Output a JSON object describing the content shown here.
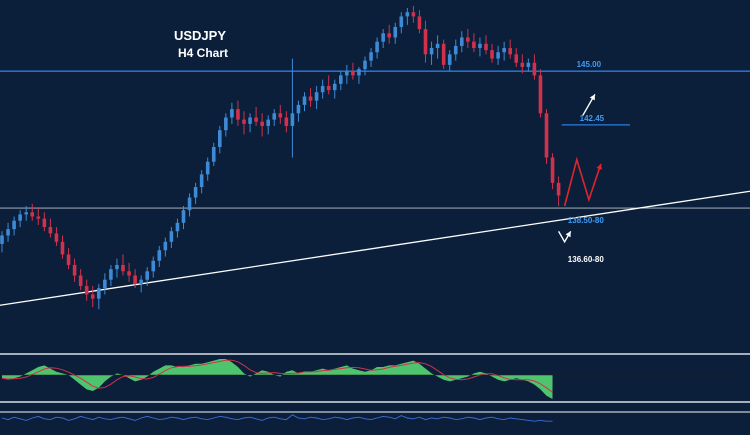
{
  "chart_data": {
    "type": "candlestick",
    "symbol": "USDJPY",
    "timeframe": "H4 Chart",
    "colors": {
      "background": "#0b1f3a",
      "bull": "#3d8ad6",
      "bear": "#d2314b",
      "resistance": "#2a7de1",
      "support": "#b9c3cf",
      "trendline": "#ffffff",
      "label_blue": "#3d9cf5",
      "projection_red": "#e0242e",
      "projection_white": "#ffffff",
      "histogram": "#4fc46e",
      "osc_line": "#3b6fd6",
      "panel_border": "#a7afba"
    },
    "price_axis": {
      "min": 132.0,
      "max": 148.0
    },
    "levels": [
      {
        "price": 145.0,
        "label": "145.00",
        "kind": "resistance"
      },
      {
        "price": 142.45,
        "label": "142.45",
        "kind": "target"
      },
      {
        "price": 138.5,
        "label": "138.50-80",
        "kind": "support"
      },
      {
        "price": 136.6,
        "label": "136.60-80",
        "kind": "support"
      }
    ],
    "trendline": {
      "from_bar": 0,
      "from_price": 133.9,
      "to_bar": 103,
      "to_price": 138.4
    },
    "candles": [
      [
        136.8,
        137.4,
        136.4,
        137.2
      ],
      [
        137.2,
        137.8,
        136.9,
        137.5
      ],
      [
        137.5,
        138.1,
        137.2,
        137.9
      ],
      [
        137.9,
        138.4,
        137.6,
        138.2
      ],
      [
        138.2,
        138.6,
        137.9,
        138.3
      ],
      [
        138.3,
        138.7,
        137.9,
        138.1
      ],
      [
        138.1,
        138.5,
        137.7,
        138.0
      ],
      [
        138.0,
        138.3,
        137.4,
        137.6
      ],
      [
        137.6,
        138.0,
        137.1,
        137.3
      ],
      [
        137.3,
        137.6,
        136.7,
        136.9
      ],
      [
        136.9,
        137.2,
        136.1,
        136.3
      ],
      [
        136.3,
        136.6,
        135.6,
        135.8
      ],
      [
        135.8,
        136.1,
        135.0,
        135.3
      ],
      [
        135.3,
        135.6,
        134.6,
        134.8
      ],
      [
        134.8,
        135.1,
        134.1,
        134.4
      ],
      [
        134.4,
        134.8,
        133.8,
        134.2
      ],
      [
        134.2,
        134.9,
        133.7,
        134.7
      ],
      [
        134.7,
        135.4,
        134.4,
        135.1
      ],
      [
        135.1,
        135.8,
        134.8,
        135.6
      ],
      [
        135.6,
        136.1,
        135.2,
        135.8
      ],
      [
        135.8,
        136.3,
        135.3,
        135.5
      ],
      [
        135.5,
        135.9,
        135.0,
        135.3
      ],
      [
        135.3,
        135.6,
        134.7,
        134.9
      ],
      [
        134.9,
        135.3,
        134.5,
        135.1
      ],
      [
        135.1,
        135.7,
        134.8,
        135.5
      ],
      [
        135.5,
        136.2,
        135.2,
        136.0
      ],
      [
        136.0,
        136.7,
        135.7,
        136.5
      ],
      [
        136.5,
        137.1,
        136.2,
        136.9
      ],
      [
        136.9,
        137.6,
        136.6,
        137.4
      ],
      [
        137.4,
        138.0,
        137.1,
        137.8
      ],
      [
        137.8,
        138.6,
        137.5,
        138.4
      ],
      [
        138.4,
        139.2,
        138.1,
        139.0
      ],
      [
        139.0,
        139.7,
        138.7,
        139.5
      ],
      [
        139.5,
        140.3,
        139.2,
        140.1
      ],
      [
        140.1,
        140.9,
        139.8,
        140.7
      ],
      [
        140.7,
        141.6,
        140.5,
        141.4
      ],
      [
        141.4,
        142.4,
        141.1,
        142.2
      ],
      [
        142.2,
        143.0,
        141.9,
        142.8
      ],
      [
        142.8,
        143.5,
        142.5,
        143.2
      ],
      [
        143.2,
        143.6,
        142.4,
        142.7
      ],
      [
        142.7,
        143.1,
        142.0,
        142.5
      ],
      [
        142.5,
        143.0,
        142.1,
        142.8
      ],
      [
        142.8,
        143.3,
        142.4,
        142.6
      ],
      [
        142.6,
        143.0,
        141.9,
        142.4
      ],
      [
        142.4,
        142.9,
        142.0,
        142.7
      ],
      [
        142.7,
        143.2,
        142.4,
        143.0
      ],
      [
        143.0,
        143.4,
        142.5,
        142.8
      ],
      [
        142.8,
        143.1,
        142.1,
        142.4
      ],
      [
        142.4,
        145.6,
        140.9,
        143.0
      ],
      [
        143.0,
        143.6,
        142.6,
        143.4
      ],
      [
        143.4,
        144.0,
        143.1,
        143.8
      ],
      [
        143.8,
        144.2,
        143.3,
        143.6
      ],
      [
        143.6,
        144.3,
        143.2,
        144.0
      ],
      [
        144.0,
        144.6,
        143.7,
        144.3
      ],
      [
        144.3,
        144.8,
        143.9,
        144.1
      ],
      [
        144.1,
        144.6,
        143.7,
        144.4
      ],
      [
        144.4,
        145.0,
        144.1,
        144.8
      ],
      [
        144.8,
        145.3,
        144.4,
        145.0
      ],
      [
        145.0,
        145.4,
        144.6,
        144.8
      ],
      [
        144.8,
        145.2,
        144.4,
        145.1
      ],
      [
        145.1,
        145.7,
        144.8,
        145.5
      ],
      [
        145.5,
        146.1,
        145.2,
        145.9
      ],
      [
        145.9,
        146.6,
        145.6,
        146.4
      ],
      [
        146.4,
        147.0,
        146.1,
        146.8
      ],
      [
        146.8,
        147.2,
        146.3,
        146.6
      ],
      [
        146.6,
        147.3,
        146.3,
        147.1
      ],
      [
        147.1,
        147.8,
        146.8,
        147.6
      ],
      [
        147.6,
        148.0,
        147.2,
        147.8
      ],
      [
        147.8,
        148.1,
        147.3,
        147.6
      ],
      [
        147.6,
        147.9,
        146.8,
        147.0
      ],
      [
        147.0,
        147.4,
        145.4,
        145.8
      ],
      [
        145.8,
        146.4,
        145.3,
        146.1
      ],
      [
        146.1,
        146.7,
        145.6,
        146.3
      ],
      [
        146.3,
        146.5,
        145.1,
        145.3
      ],
      [
        145.3,
        146.0,
        145.0,
        145.8
      ],
      [
        145.8,
        146.5,
        145.5,
        146.2
      ],
      [
        146.2,
        146.9,
        145.9,
        146.6
      ],
      [
        146.6,
        147.0,
        146.1,
        146.4
      ],
      [
        146.4,
        146.8,
        145.9,
        146.1
      ],
      [
        146.1,
        146.6,
        145.7,
        146.3
      ],
      [
        146.3,
        146.7,
        145.8,
        146.0
      ],
      [
        146.0,
        146.3,
        145.4,
        145.6
      ],
      [
        145.6,
        146.2,
        145.3,
        145.9
      ],
      [
        145.9,
        146.4,
        145.5,
        146.1
      ],
      [
        146.1,
        146.5,
        145.6,
        145.8
      ],
      [
        145.8,
        146.1,
        145.2,
        145.4
      ],
      [
        145.4,
        145.8,
        144.9,
        145.2
      ],
      [
        145.2,
        145.6,
        145.0,
        145.4
      ],
      [
        145.4,
        145.8,
        144.6,
        144.8
      ],
      [
        144.8,
        145.1,
        142.8,
        143.0
      ],
      [
        143.0,
        143.2,
        140.6,
        140.9
      ],
      [
        140.9,
        141.1,
        139.4,
        139.7
      ],
      [
        139.7,
        140.0,
        138.6,
        139.1
      ]
    ],
    "projection_red": [
      [
        93,
        138.6
      ],
      [
        95,
        140.8
      ],
      [
        97,
        138.9
      ],
      [
        99,
        140.6
      ]
    ],
    "projection_up_arrow": [
      [
        96,
        142.9
      ],
      [
        98,
        143.9
      ]
    ],
    "projection_white": [
      [
        92,
        137.4
      ],
      [
        93,
        136.9
      ],
      [
        94,
        137.4
      ]
    ],
    "osc_values": [
      -0.2,
      -0.3,
      -0.2,
      -0.1,
      0.1,
      0.3,
      0.5,
      0.6,
      0.4,
      0.2,
      0.1,
      0.0,
      -0.3,
      -0.6,
      -0.9,
      -1.0,
      -0.8,
      -0.4,
      -0.1,
      0.1,
      0.0,
      -0.2,
      -0.4,
      -0.3,
      -0.1,
      0.2,
      0.4,
      0.6,
      0.6,
      0.5,
      0.5,
      0.6,
      0.7,
      0.7,
      0.8,
      0.9,
      1.0,
      1.0,
      0.8,
      0.5,
      0.1,
      -0.1,
      0.1,
      0.3,
      0.2,
      0.0,
      -0.1,
      0.2,
      0.3,
      0.1,
      0.2,
      0.2,
      0.3,
      0.4,
      0.3,
      0.4,
      0.5,
      0.6,
      0.4,
      0.3,
      0.2,
      0.3,
      0.5,
      0.5,
      0.6,
      0.6,
      0.7,
      0.8,
      0.9,
      0.7,
      0.4,
      0.1,
      -0.1,
      -0.3,
      -0.4,
      -0.3,
      -0.2,
      -0.1,
      0.1,
      0.2,
      0.1,
      -0.1,
      -0.3,
      -0.4,
      -0.3,
      -0.2,
      -0.3,
      -0.4,
      -0.6,
      -0.9,
      -1.3,
      -1.5
    ],
    "osc2_values": [
      0.5,
      0.3,
      0.6,
      0.4,
      0.2,
      0.5,
      0.7,
      0.4,
      0.3,
      0.6,
      0.5,
      0.2,
      0.4,
      0.7,
      0.5,
      0.3,
      0.6,
      0.4,
      0.3,
      0.5,
      0.6,
      0.4,
      0.2,
      0.5,
      0.7,
      0.5,
      0.3,
      0.4,
      0.6,
      0.5,
      0.3,
      0.5,
      0.6,
      0.4,
      0.3,
      0.5,
      0.7,
      0.6,
      0.4,
      0.3,
      0.5,
      0.6,
      0.4,
      0.2,
      0.5,
      0.6,
      0.4,
      0.3,
      0.9,
      0.5,
      0.4,
      0.6,
      0.5,
      0.3,
      0.4,
      0.6,
      0.5,
      0.3,
      0.5,
      0.6,
      0.4,
      0.3,
      0.5,
      0.7,
      0.6,
      0.4,
      0.8,
      0.5,
      0.4,
      0.6,
      0.3,
      0.5,
      0.4,
      0.6,
      0.5,
      0.3,
      0.4,
      0.6,
      0.5,
      0.3,
      0.5,
      0.6,
      0.4,
      0.3,
      0.5,
      0.4,
      0.3,
      0.2,
      0.1,
      0.2,
      0.1,
      0.1
    ]
  }
}
